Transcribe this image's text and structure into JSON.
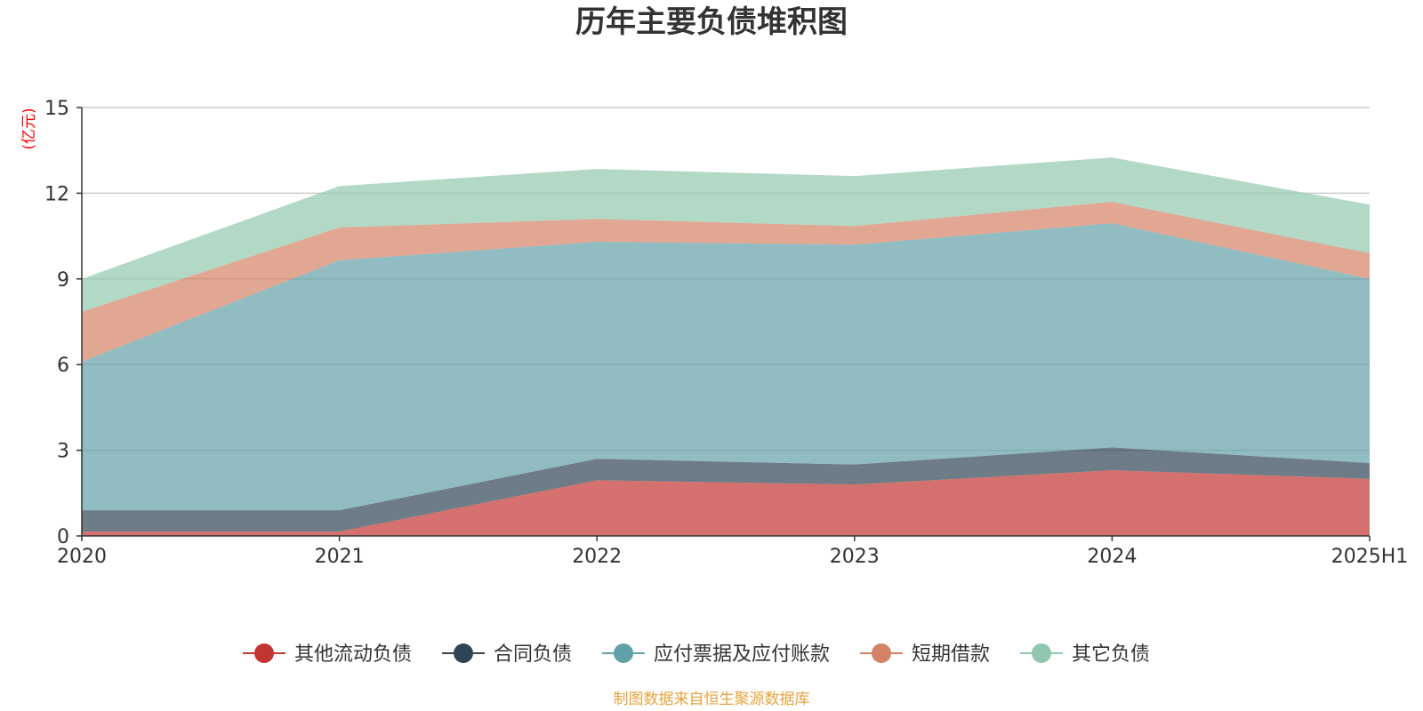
{
  "chart_data": {
    "type": "area",
    "stacked": true,
    "title": "历年主要负债堆积图",
    "ylabel": "(亿元)",
    "xlabel": "",
    "categories": [
      "2020",
      "2021",
      "2022",
      "2023",
      "2024",
      "2025H1"
    ],
    "ylim": [
      0,
      15
    ],
    "yticks": [
      0,
      3,
      6,
      9,
      12,
      15
    ],
    "grid": true,
    "legend_position": "bottom",
    "series": [
      {
        "name": "其他流动负债",
        "color": "#c23531",
        "values": [
          0.15,
          0.15,
          1.95,
          1.8,
          2.3,
          2.0
        ]
      },
      {
        "name": "合同负债",
        "color": "#2f4554",
        "values": [
          0.75,
          0.75,
          0.75,
          0.7,
          0.8,
          0.55
        ]
      },
      {
        "name": "应付票据及应付账款",
        "color": "#61a0a8",
        "values": [
          5.2,
          8.75,
          7.6,
          7.7,
          7.85,
          6.45
        ]
      },
      {
        "name": "短期借款",
        "color": "#d48265",
        "values": [
          1.75,
          1.15,
          0.8,
          0.65,
          0.75,
          0.9
        ]
      },
      {
        "name": "其它负债",
        "color": "#91c7ae",
        "values": [
          1.15,
          1.45,
          1.75,
          1.75,
          1.55,
          1.7
        ]
      }
    ]
  },
  "source_note": "制图数据来自恒生聚源数据库",
  "colors": {
    "ylabel": "#ff0000",
    "source": "#e8a33c",
    "grid": "#cccccc",
    "axis": "#333333"
  }
}
